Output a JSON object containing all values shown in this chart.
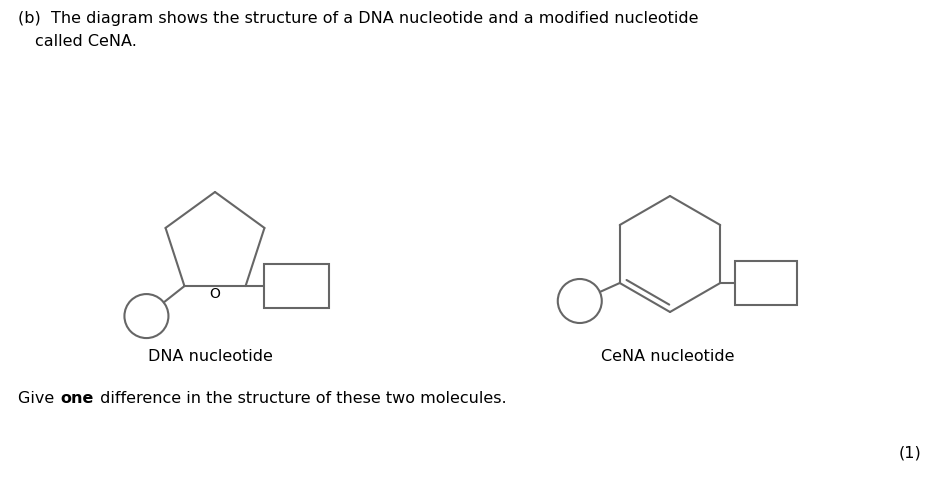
{
  "bg_color": "#ffffff",
  "text_color": "#000000",
  "line_color": "#666666",
  "dna_label": "DNA nucleotide",
  "cena_label": "CeNA nucleotide",
  "fig_width": 9.39,
  "fig_height": 4.79,
  "dpi": 100,
  "header_line1": "(b)  The diagram shows the structure of a DNA nucleotide and a modified nucleotide",
  "header_line2": "      called CeNA.",
  "q_text1": "Give ",
  "q_text2": "one",
  "q_text3": " difference in the structure of these two molecules.",
  "mark": "(1)"
}
